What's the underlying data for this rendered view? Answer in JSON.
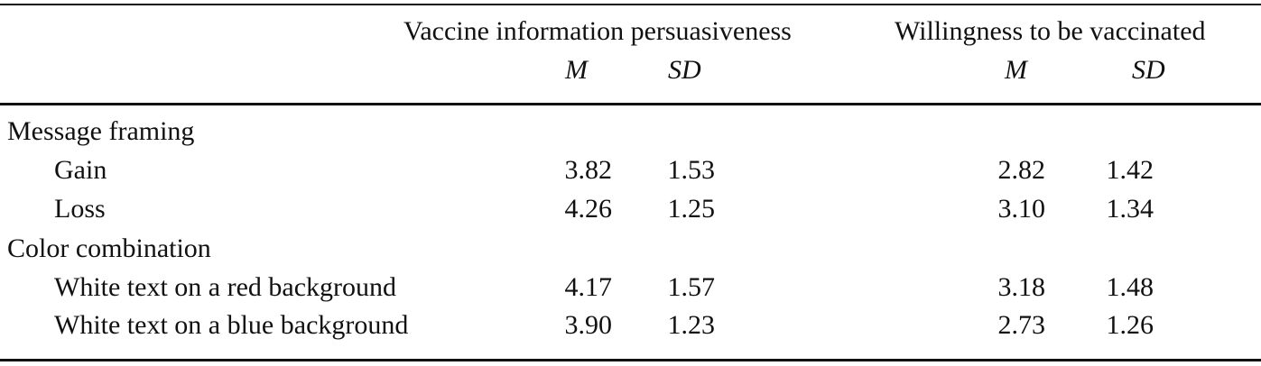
{
  "header": {
    "group1": "Vaccine information persuasiveness",
    "group2": "Willingness to be vaccinated",
    "m1": "M",
    "sd1": "SD",
    "m2": "M",
    "sd2": "SD"
  },
  "sections": [
    {
      "label": "Message framing",
      "rows": [
        {
          "label": "Gain",
          "vip_m": "3.82",
          "vip_sd": "1.53",
          "wtv_m": "2.82",
          "wtv_sd": "1.42"
        },
        {
          "label": "Loss",
          "vip_m": "4.26",
          "vip_sd": "1.25",
          "wtv_m": "3.10",
          "wtv_sd": "1.34"
        }
      ]
    },
    {
      "label": "Color combination",
      "rows": [
        {
          "label": "White text on a red background",
          "vip_m": "4.17",
          "vip_sd": "1.57",
          "wtv_m": "3.18",
          "wtv_sd": "1.48"
        },
        {
          "label": "White text on a blue background",
          "vip_m": "3.90",
          "vip_sd": "1.23",
          "wtv_m": "2.73",
          "wtv_sd": "1.26"
        }
      ]
    }
  ]
}
